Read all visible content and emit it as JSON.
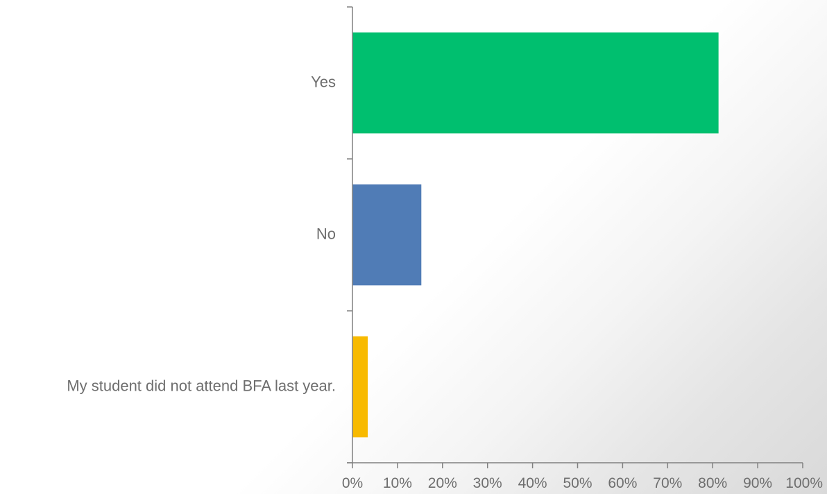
{
  "chart_data": {
    "type": "bar",
    "orientation": "horizontal",
    "title": "",
    "xlabel": "",
    "ylabel": "",
    "categories": [
      "Yes",
      "No",
      "My student did not attend BFA last year."
    ],
    "values": [
      81.3,
      15.3,
      3.4
    ],
    "colors": [
      "#00BF6F",
      "#507CB6",
      "#F8BA00"
    ],
    "xlim": [
      0,
      100
    ],
    "x_ticks": [
      "0%",
      "10%",
      "20%",
      "30%",
      "40%",
      "50%",
      "60%",
      "70%",
      "80%",
      "90%",
      "100%"
    ],
    "grid": false,
    "legend": "none"
  }
}
